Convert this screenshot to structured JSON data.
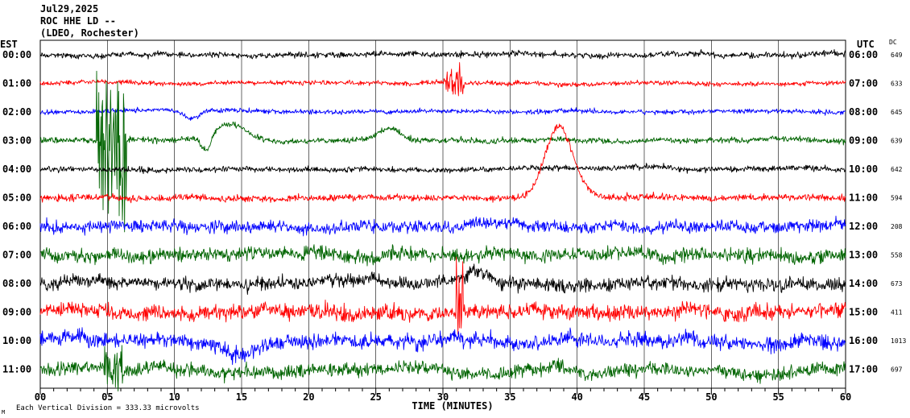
{
  "header": {
    "date": "Jul29,2025",
    "station": "ROC HHE LD --",
    "network": "(LDEO, Rochester)"
  },
  "left_axis_label": "EST",
  "right_axis_label": "UTC",
  "dc_label": "DC",
  "footer_note": "Each Vertical Division = 333.33 microvolts",
  "footer_mark": "M",
  "chart_data": {
    "type": "line",
    "title": "",
    "xlabel": "TIME (MINUTES)",
    "xlim": [
      0,
      60
    ],
    "x_ticks": [
      "00",
      "05",
      "10",
      "15",
      "20",
      "25",
      "30",
      "35",
      "40",
      "45",
      "50",
      "55",
      "60"
    ],
    "grid": true,
    "est_labels": [
      "00:00",
      "01:00",
      "02:00",
      "03:00",
      "04:00",
      "05:00",
      "06:00",
      "07:00",
      "08:00",
      "09:00",
      "10:00",
      "11:00"
    ],
    "utc_labels": [
      "06:00",
      "07:00",
      "08:00",
      "09:00",
      "10:00",
      "11:00",
      "12:00",
      "13:00",
      "14:00",
      "15:00",
      "16:00",
      "17:00"
    ],
    "dc_values": [
      "649",
      "633",
      "645",
      "639",
      "642",
      "594",
      "208",
      "558",
      "673",
      "411",
      "1013",
      "697"
    ],
    "trace_colors": [
      "#000000",
      "#ff0000",
      "#0000ff",
      "#006400",
      "#000000",
      "#ff0000",
      "#0000ff",
      "#006400",
      "#000000",
      "#ff0000",
      "#0000ff",
      "#006400"
    ],
    "noise_amplitude": [
      6,
      5,
      5,
      6,
      6,
      7,
      13,
      15,
      14,
      16,
      16,
      14
    ],
    "events": [
      {
        "row": 3,
        "type": "burst",
        "start_min": 4.2,
        "end_min": 6.4,
        "amplitude": 110
      },
      {
        "row": 1,
        "type": "burst",
        "start_min": 30.0,
        "end_min": 31.6,
        "amplitude": 18
      },
      {
        "row": 2,
        "type": "wave",
        "center_min": 11.3,
        "width_min": 0.8,
        "amplitude": 10
      },
      {
        "row": 3,
        "type": "wave",
        "center_min": 14.0,
        "width_min": 1.8,
        "amplitude": -22
      },
      {
        "row": 3,
        "type": "wave",
        "center_min": 26.0,
        "width_min": 1.2,
        "amplitude": -15
      },
      {
        "row": 3,
        "type": "wave",
        "center_min": 12.4,
        "width_min": 0.5,
        "amplitude": 20
      },
      {
        "row": 5,
        "type": "wave",
        "center_min": 38.4,
        "width_min": 1.3,
        "amplitude": -65
      },
      {
        "row": 5,
        "type": "wave",
        "center_min": 39.2,
        "width_min": 1.4,
        "amplitude": -30
      },
      {
        "row": 8,
        "type": "wave",
        "center_min": 32.6,
        "width_min": 1.0,
        "amplitude": -12
      },
      {
        "row": 9,
        "type": "burst",
        "start_min": 31.0,
        "end_min": 31.5,
        "amplitude": 60
      },
      {
        "row": 10,
        "type": "wave",
        "center_min": 15.0,
        "width_min": 1.5,
        "amplitude": 15
      },
      {
        "row": 11,
        "type": "burst",
        "start_min": 4.8,
        "end_min": 6.2,
        "amplitude": 30
      }
    ]
  }
}
